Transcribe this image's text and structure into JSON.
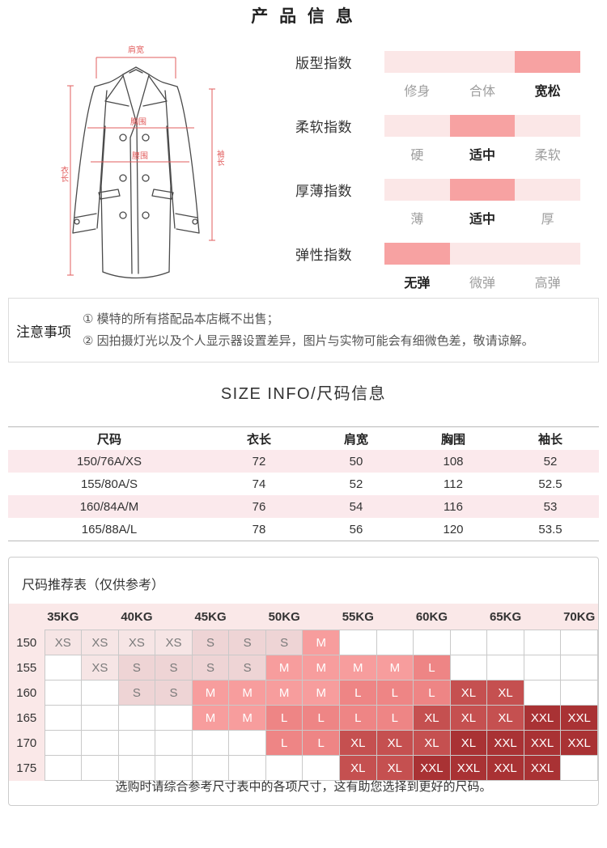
{
  "page": {
    "title": "产 品 信 息"
  },
  "diagram": {
    "shoulder_label": "肩宽",
    "chest_label": "胸围",
    "waist_label": "腰围",
    "length_label": "衣长",
    "sleeve_label": "袖长",
    "line_color": "#e25c5c",
    "coat_color": "#4a4a4a"
  },
  "indexes": {
    "items": [
      {
        "label": "版型指数",
        "options": [
          "修身",
          "合体",
          "宽松"
        ],
        "active": 2
      },
      {
        "label": "柔软指数",
        "options": [
          "硬",
          "适中",
          "柔软"
        ],
        "active": 1
      },
      {
        "label": "厚薄指数",
        "options": [
          "薄",
          "适中",
          "厚"
        ],
        "active": 1
      },
      {
        "label": "弹性指数",
        "options": [
          "无弹",
          "微弹",
          "高弹"
        ],
        "active": 0
      }
    ],
    "track_color": "#fbe7e7",
    "active_color": "#f7a2a2"
  },
  "notice": {
    "label": "注意事项",
    "lines": [
      "① 模特的所有搭配品本店概不出售；",
      "② 因拍摄灯光以及个人显示器设置差异，图片与实物可能会有细微色差，敬请谅解。"
    ]
  },
  "size_info": {
    "title": "SIZE INFO/尺码信息",
    "columns": [
      "尺码",
      "衣长",
      "肩宽",
      "胸围",
      "袖长"
    ],
    "rows": [
      [
        "150/76A/XS",
        "72",
        "50",
        "108",
        "52"
      ],
      [
        "155/80A/S",
        "74",
        "52",
        "112",
        "52.5"
      ],
      [
        "160/84A/M",
        "76",
        "54",
        "116",
        "53"
      ],
      [
        "165/88A/L",
        "78",
        "56",
        "120",
        "53.5"
      ]
    ],
    "stripe_color": "#fbe9ec"
  },
  "recommendation": {
    "title": "尺码推荐表（仅供参考）",
    "weight_headers": [
      "35KG",
      "40KG",
      "45KG",
      "50KG",
      "55KG",
      "60KG",
      "65KG",
      "70KG"
    ],
    "height_labels": [
      "150",
      "155",
      "160",
      "165",
      "170",
      "175"
    ],
    "cells": [
      [
        "XS",
        "XS",
        "XS",
        "XS",
        "S",
        "S",
        "S",
        "M",
        "",
        "",
        "",
        "",
        "",
        "",
        ""
      ],
      [
        "",
        "XS",
        "S",
        "S",
        "S",
        "S",
        "M",
        "M",
        "M",
        "M",
        "L",
        "",
        "",
        "",
        ""
      ],
      [
        "",
        "",
        "S",
        "S",
        "M",
        "M",
        "M",
        "M",
        "L",
        "L",
        "L",
        "XL",
        "XL",
        "",
        ""
      ],
      [
        "",
        "",
        "",
        "",
        "M",
        "M",
        "L",
        "L",
        "L",
        "L",
        "XL",
        "XL",
        "XL",
        "XXL",
        "XXL"
      ],
      [
        "",
        "",
        "",
        "",
        "",
        "",
        "L",
        "L",
        "XL",
        "XL",
        "XL",
        "XL",
        "XXL",
        "XXL",
        "XXL"
      ],
      [
        "",
        "",
        "",
        "",
        "",
        "",
        "",
        "",
        "XL",
        "XL",
        "XXL",
        "XXL",
        "XXL",
        "XXL",
        ""
      ]
    ],
    "dark_cells": [
      [
        4,
        11
      ]
    ],
    "size_colors": {
      "XS": "#f6e5e5",
      "S": "#eed4d5",
      "M": "#f79d9d",
      "L": "#ee8585",
      "XL": "#c55050",
      "XXL": "#a93234"
    },
    "header_bg": "#fae8e8",
    "note": "选购时请综合参考尺寸表中的各项尺寸，这有助您选择到更好的尺码。"
  }
}
